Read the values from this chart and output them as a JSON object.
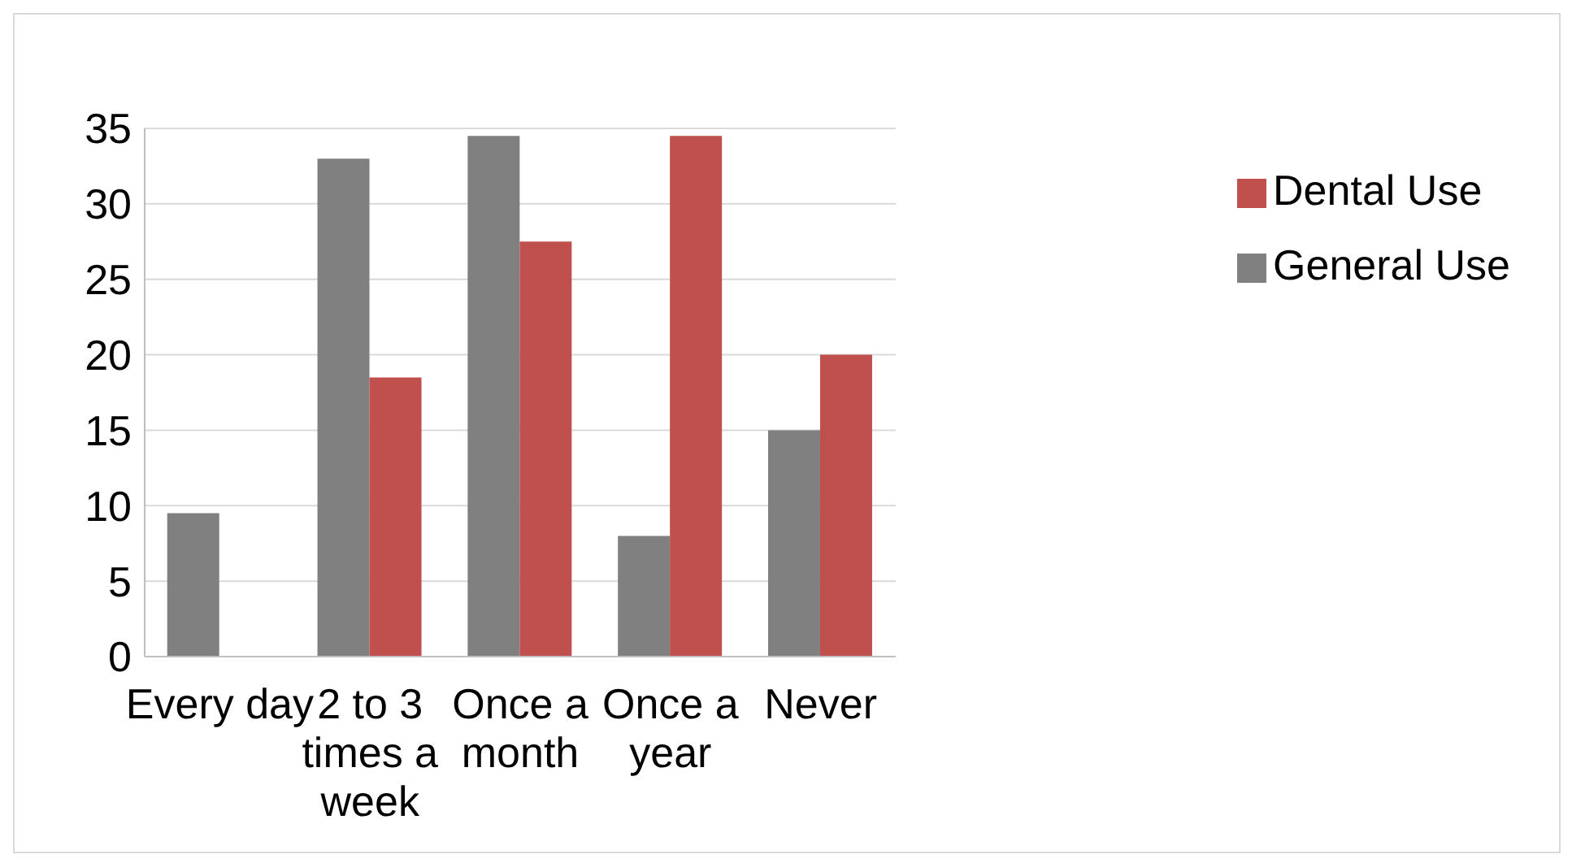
{
  "chart_data": {
    "type": "bar",
    "categories": [
      "Every day",
      "2 to 3 times a week",
      "Once a month",
      "Once a year",
      "Never"
    ],
    "series": [
      {
        "name": "General Use",
        "color": "#808080",
        "values": [
          9.5,
          33,
          34.5,
          8,
          15
        ]
      },
      {
        "name": "Dental Use",
        "color": "#c0504d",
        "values": [
          0,
          18.5,
          27.5,
          34.5,
          20
        ]
      }
    ],
    "ylim": [
      0,
      35
    ],
    "yticks": [
      0,
      5,
      10,
      15,
      20,
      25,
      30,
      35
    ],
    "grid": "y",
    "legend": "top right"
  }
}
